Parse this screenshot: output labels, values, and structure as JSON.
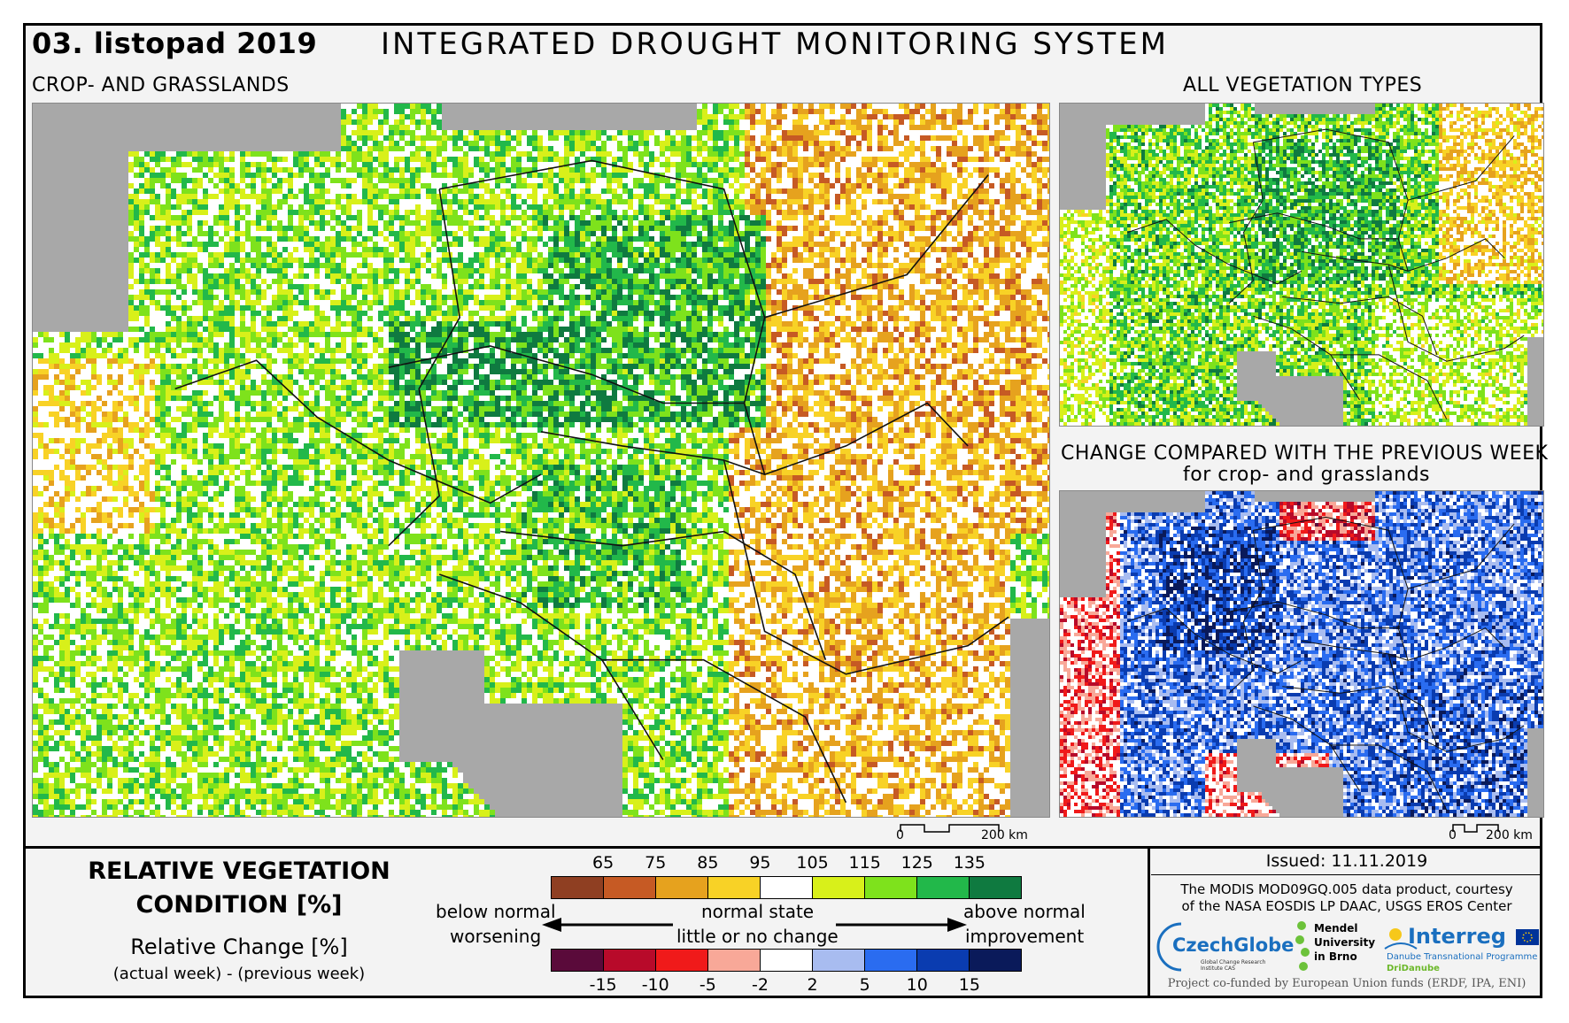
{
  "header": {
    "date": "03. listopad 2019",
    "title": "INTEGRATED DROUGHT MONITORING SYSTEM"
  },
  "maps": {
    "main_label": "CROP- AND GRASSLANDS",
    "top_right_label": "ALL VEGETATION TYPES",
    "bottom_right_label_1": "CHANGE COMPARED WITH THE PREVIOUS WEEK",
    "bottom_right_label_2": "for crop- and grasslands",
    "scale_zero": "0",
    "scale_main": "200 km",
    "scale_small": "200 km"
  },
  "legend": {
    "title_line1": "RELATIVE VEGETATION",
    "title_line2": "CONDITION [%]",
    "change_title": "Relative Change [%]",
    "change_sub": "(actual week) - (previous week)",
    "condition_ticks": [
      "65",
      "75",
      "85",
      "95",
      "105",
      "115",
      "125",
      "135"
    ],
    "condition_colors": [
      "#8f3f22",
      "#c65a24",
      "#e6a21e",
      "#f8d226",
      "#ffffff",
      "#d8f01a",
      "#7ee21c",
      "#22b84a",
      "#0f7a40"
    ],
    "change_ticks": [
      "-15",
      "-10",
      "-5",
      "-2",
      "2",
      "5",
      "10",
      "15"
    ],
    "change_colors": [
      "#5a0a3a",
      "#b80a2a",
      "#f01a1a",
      "#f8a898",
      "#ffffff",
      "#a8bcf0",
      "#2a6cf0",
      "#0a3cb0",
      "#0a1a5a"
    ],
    "below_normal": "below normal",
    "worsening": "worsening",
    "normal_state": "normal state",
    "little_change": "little or no change",
    "above_normal": "above normal",
    "improvement": "improvement"
  },
  "credits": {
    "issued": "Issued: 11.11.2019",
    "line1": "The MODIS MOD09GQ.005 data product, courtesy",
    "line2": "of the NASA EOSDIS LP DAAC, USGS EROS Center",
    "czechglobe": "CzechGlobe",
    "czechglobe_sub": "Global Change Research Institute CAS",
    "mendel": "Mendel",
    "university": "University",
    "in_brno": "in Brno",
    "interreg": "Interreg",
    "danube": "Danube Transnational Programme",
    "dridanube": "DriDanube",
    "cofunded": "Project co-funded by European Union funds (ERDF, IPA, ENI)"
  }
}
